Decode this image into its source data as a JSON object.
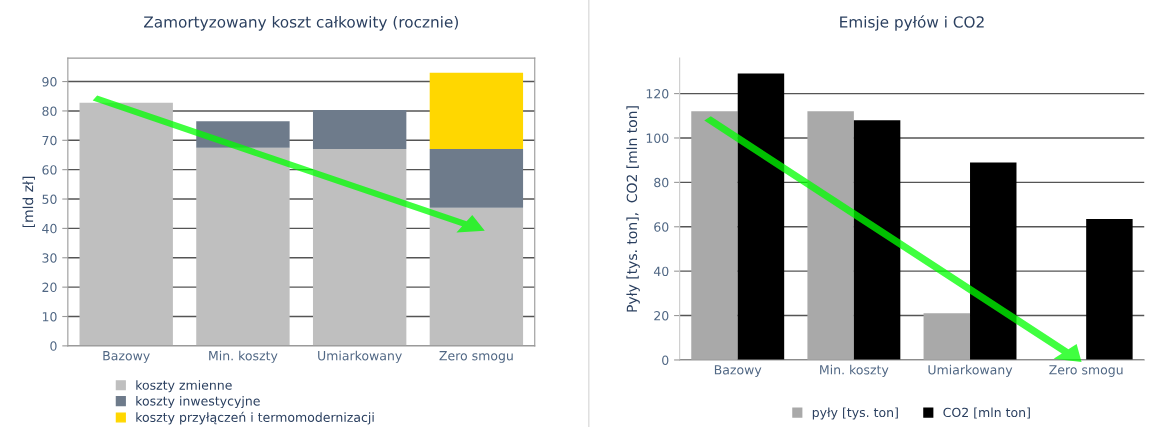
{
  "chart_data": [
    {
      "type": "bar",
      "title": "Zamortyzowany koszt całkowity (rocznie)",
      "ylabel": "[mld zł]",
      "categories": [
        "Bazowy",
        "Min. koszty",
        "Umiarkowany",
        "Zero smogu"
      ],
      "stacked": true,
      "ylim": [
        0,
        98
      ],
      "yticks": [
        0,
        10,
        20,
        30,
        40,
        50,
        60,
        70,
        80,
        90
      ],
      "grid": "y",
      "legend": "bottom left",
      "series": [
        {
          "name": "koszty zmienne",
          "color": "#bfbfbf",
          "values": [
            82.8,
            67.5,
            67,
            47
          ]
        },
        {
          "name": "koszty inwestycyjne",
          "color": "#6e7b8b",
          "values": [
            0,
            9,
            13.3,
            20
          ]
        },
        {
          "name": "koszty przyłączeń i termomodernizacji",
          "color": "#ffd700",
          "values": [
            0,
            0,
            0,
            26
          ]
        }
      ]
    },
    {
      "type": "bar",
      "title": "Emisje pyłów i CO2",
      "ylabel": "Pyły [tys. ton],  CO2 [mln ton]",
      "categories": [
        "Bazowy",
        "Min. koszty",
        "Umiarkowany",
        "Zero smogu"
      ],
      "ylim": [
        0,
        136
      ],
      "yticks": [
        0,
        20,
        40,
        60,
        80,
        100,
        120
      ],
      "grid": "y",
      "legend": "bottom",
      "series": [
        {
          "name": "pyły [tys. ton]",
          "color": "#a9a9a9",
          "values": [
            112,
            112,
            21,
            0
          ]
        },
        {
          "name": "CO2 [mln ton]",
          "color": "#000000",
          "values": [
            129,
            108,
            89,
            63.5
          ]
        }
      ]
    }
  ]
}
